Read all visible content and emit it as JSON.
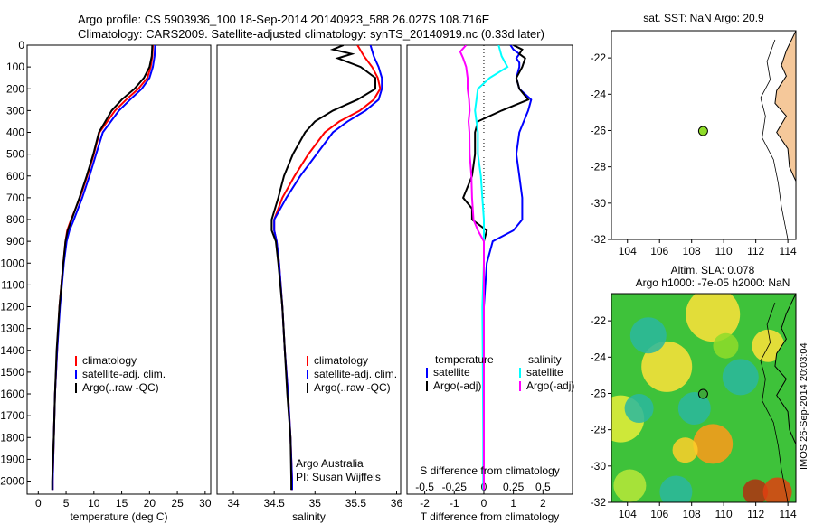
{
  "header": {
    "line1": "Argo profile: CS 5903936_100 18-Sep-2014 20140923_588 26.027S 108.716E",
    "line2": "Climatology: CARS2009. Satellite-adjusted climatology: synTS_20140919.nc (0.33d later)"
  },
  "side_label": "IMOS 26-Sep-2014 20:03:04",
  "colors": {
    "climatology": "#ff0000",
    "satellite": "#0000ff",
    "argo": "#000000",
    "satellite_s": "#00ffff",
    "argo_s": "#ff00ff",
    "land": "#f5c89a",
    "float": "#8fdc2a"
  },
  "chart_data": [
    {
      "type": "line",
      "id": "temperature",
      "xlabel": "temperature (deg C)",
      "xlim": [
        -2,
        31
      ],
      "xticks": [
        0,
        5,
        10,
        15,
        20,
        25,
        30
      ],
      "ylim": [
        2060,
        0
      ],
      "yticks": [
        0,
        100,
        200,
        300,
        400,
        500,
        600,
        700,
        800,
        900,
        1000,
        1100,
        1200,
        1300,
        1400,
        1500,
        1600,
        1700,
        1800,
        1900,
        2000
      ],
      "legend": [
        "climatology",
        "satellite-adj. clim.",
        "Argo(..raw -QC)"
      ],
      "series": [
        {
          "name": "climatology",
          "color": "#ff0000",
          "depth": [
            0,
            50,
            100,
            150,
            200,
            250,
            300,
            400,
            500,
            600,
            700,
            800,
            850,
            900,
            1000,
            1200,
            1400,
            1600,
            1800,
            2000,
            2040
          ],
          "values": [
            20.6,
            20.5,
            20.2,
            19.6,
            18.0,
            15.8,
            13.8,
            11.0,
            10.0,
            8.8,
            7.5,
            5.9,
            5.2,
            4.9,
            4.5,
            3.8,
            3.4,
            3.0,
            2.8,
            2.6,
            2.6
          ]
        },
        {
          "name": "satellite-adj. clim.",
          "color": "#0000ff",
          "depth": [
            0,
            50,
            100,
            150,
            200,
            250,
            300,
            400,
            500,
            600,
            700,
            800,
            850,
            900,
            1000,
            1200,
            1400,
            1600,
            1800,
            2000,
            2040
          ],
          "values": [
            21.0,
            20.9,
            20.6,
            20.0,
            18.6,
            16.5,
            14.5,
            11.6,
            10.4,
            9.2,
            7.9,
            6.4,
            5.6,
            5.1,
            4.6,
            3.9,
            3.4,
            3.0,
            2.8,
            2.6,
            2.6
          ]
        },
        {
          "name": "Argo(..raw -QC)",
          "color": "#000000",
          "depth": [
            0,
            50,
            100,
            150,
            200,
            250,
            300,
            400,
            500,
            600,
            700,
            800,
            850,
            900,
            1000,
            1200,
            1400,
            1600,
            1800,
            2000,
            2040
          ],
          "values": [
            20.5,
            20.4,
            20.0,
            19.0,
            17.3,
            15.0,
            13.2,
            10.9,
            9.9,
            8.7,
            7.4,
            6.0,
            5.3,
            4.9,
            4.5,
            3.8,
            3.3,
            3.0,
            2.8,
            2.5,
            2.5
          ]
        }
      ]
    },
    {
      "type": "line",
      "id": "salinity",
      "xlabel": "salinity",
      "xlim": [
        33.8,
        36.05
      ],
      "xticks": [
        34,
        34.5,
        35,
        35.5,
        36
      ],
      "ylim": [
        2060,
        0
      ],
      "legend": [
        "climatology",
        "satellite-adj. clim.",
        "Argo(..raw -QC)"
      ],
      "annotation": [
        "Argo Australia",
        "PI: Susan Wijffels"
      ],
      "series": [
        {
          "name": "climatology",
          "color": "#ff0000",
          "depth": [
            0,
            50,
            100,
            150,
            200,
            250,
            300,
            350,
            400,
            500,
            600,
            700,
            800,
            850,
            900,
            1000,
            1200,
            1400,
            1600,
            1800,
            2000,
            2040
          ],
          "values": [
            35.52,
            35.6,
            35.7,
            35.77,
            35.8,
            35.72,
            35.55,
            35.3,
            35.12,
            34.92,
            34.75,
            34.6,
            34.5,
            34.5,
            34.53,
            34.56,
            34.6,
            34.63,
            34.67,
            34.7,
            34.72,
            34.72
          ]
        },
        {
          "name": "satellite-adj. clim.",
          "color": "#0000ff",
          "depth": [
            0,
            50,
            100,
            150,
            200,
            250,
            300,
            350,
            400,
            500,
            600,
            700,
            800,
            850,
            900,
            1000,
            1200,
            1400,
            1600,
            1800,
            2000,
            2040
          ],
          "values": [
            35.68,
            35.72,
            35.78,
            35.82,
            35.82,
            35.78,
            35.62,
            35.4,
            35.22,
            35.02,
            34.82,
            34.65,
            34.5,
            34.5,
            34.53,
            34.56,
            34.6,
            34.63,
            34.67,
            34.7,
            34.72,
            34.72
          ]
        },
        {
          "name": "Argo(..raw -QC)",
          "color": "#000000",
          "depth": [
            0,
            20,
            40,
            60,
            100,
            150,
            200,
            250,
            300,
            350,
            400,
            500,
            600,
            700,
            800,
            850,
            900,
            1000,
            1200,
            1400,
            1600,
            1800,
            2000,
            2040
          ],
          "values": [
            35.35,
            35.22,
            35.45,
            35.28,
            35.56,
            35.74,
            35.74,
            35.52,
            35.22,
            35.0,
            34.88,
            34.73,
            34.62,
            34.55,
            34.47,
            34.47,
            34.52,
            34.55,
            34.6,
            34.63,
            34.66,
            34.7,
            34.71,
            34.71
          ]
        }
      ]
    },
    {
      "type": "line",
      "id": "difference",
      "xlabel": "T difference from climatology",
      "xlabel_top": "S difference from climatology",
      "xlim": [
        -2.6,
        3.0
      ],
      "xticks": [
        -2,
        -1,
        0,
        1,
        2
      ],
      "xticks_top": [
        -0.5,
        -0.25,
        0,
        0.25,
        0.5
      ],
      "ylim": [
        2060,
        0
      ],
      "legend_temperature": [
        "temperature",
        "satellite",
        "Argo(-adj)"
      ],
      "legend_salinity": [
        "salinity",
        "satellite",
        "Argo(-adj)"
      ],
      "series": [
        {
          "name": "satellite",
          "color": "#0000ff",
          "depth": [
            0,
            20,
            40,
            60,
            80,
            100,
            150,
            200,
            250,
            300,
            400,
            500,
            600,
            700,
            800,
            850,
            900,
            1000,
            1200,
            1400,
            1600,
            1800,
            2000,
            2040
          ],
          "values": [
            0.9,
            1.0,
            1.2,
            1.1,
            1.2,
            1.2,
            1.1,
            1.2,
            1.6,
            1.5,
            1.2,
            1.1,
            1.2,
            1.3,
            1.3,
            1.0,
            0.3,
            0.1,
            0.0,
            0.0,
            0.0,
            0.0,
            0.0,
            0.0
          ]
        },
        {
          "name": "Argo(-adj)",
          "color": "#000000",
          "depth": [
            0,
            20,
            40,
            60,
            100,
            150,
            200,
            250,
            300,
            350,
            400,
            500,
            600,
            700,
            750,
            800,
            850,
            900,
            950,
            1000,
            1200,
            1400,
            1600,
            1800,
            2000,
            2040
          ],
          "values": [
            1.0,
            1.3,
            1.2,
            1.4,
            1.3,
            1.1,
            1.2,
            1.5,
            0.6,
            -0.2,
            -0.3,
            -0.3,
            -0.4,
            -0.7,
            -0.4,
            -0.4,
            0.1,
            0.0,
            0.0,
            0.0,
            0.0,
            0.0,
            0.0,
            0.0,
            0.0,
            0.0
          ]
        },
        {
          "name": "satellite",
          "color": "#00ffff",
          "depth": [
            0,
            50,
            100,
            150,
            200,
            300,
            400,
            500,
            600,
            700,
            800,
            900,
            1000,
            1200,
            1400,
            1600,
            1800,
            2000,
            2040
          ],
          "values": [
            0.5,
            0.6,
            0.8,
            0.2,
            -0.2,
            -0.3,
            -0.2,
            -0.2,
            -0.1,
            -0.05,
            0.0,
            0.0,
            0.0,
            -0.05,
            -0.04,
            -0.03,
            -0.02,
            -0.02,
            -0.02
          ]
        },
        {
          "name": "Argo(-adj)",
          "color": "#ff00ff",
          "depth": [
            0,
            30,
            60,
            100,
            150,
            200,
            250,
            300,
            350,
            400,
            500,
            600,
            700,
            800,
            850,
            900,
            1000,
            1200,
            1400,
            1600,
            1800,
            2000,
            2040
          ],
          "values": [
            -0.6,
            -0.8,
            -0.7,
            -0.6,
            -0.55,
            -0.55,
            -0.5,
            -0.48,
            -0.52,
            -0.49,
            -0.48,
            -0.42,
            -0.4,
            -0.35,
            -0.2,
            0.0,
            0.0,
            0.0,
            0.0,
            0.0,
            0.0,
            0.0,
            0.0
          ]
        }
      ]
    },
    {
      "type": "scatter",
      "id": "sst_map",
      "title": "sat. SST: NaN Argo: 20.9",
      "xlim": [
        103,
        114.5
      ],
      "ylim": [
        -32,
        -20.5
      ],
      "xticks": [
        104,
        106,
        108,
        110,
        112,
        114
      ],
      "yticks": [
        -22,
        -24,
        -26,
        -28,
        -30,
        -32
      ],
      "float_position": {
        "lon": 108.716,
        "lat": -26.027
      }
    },
    {
      "type": "heatmap",
      "id": "sla_map",
      "title_line1": "Altim. SLA: 0.078",
      "title_line2": "Argo h1000: -7e-05 h2000: NaN",
      "xlim": [
        103,
        114.5
      ],
      "ylim": [
        -32,
        -20.5
      ],
      "xticks": [
        104,
        106,
        108,
        110,
        112,
        114
      ],
      "yticks": [
        -22,
        -24,
        -26,
        -28,
        -30,
        -32
      ],
      "float_position": {
        "lon": 108.716,
        "lat": -26.027
      }
    }
  ]
}
